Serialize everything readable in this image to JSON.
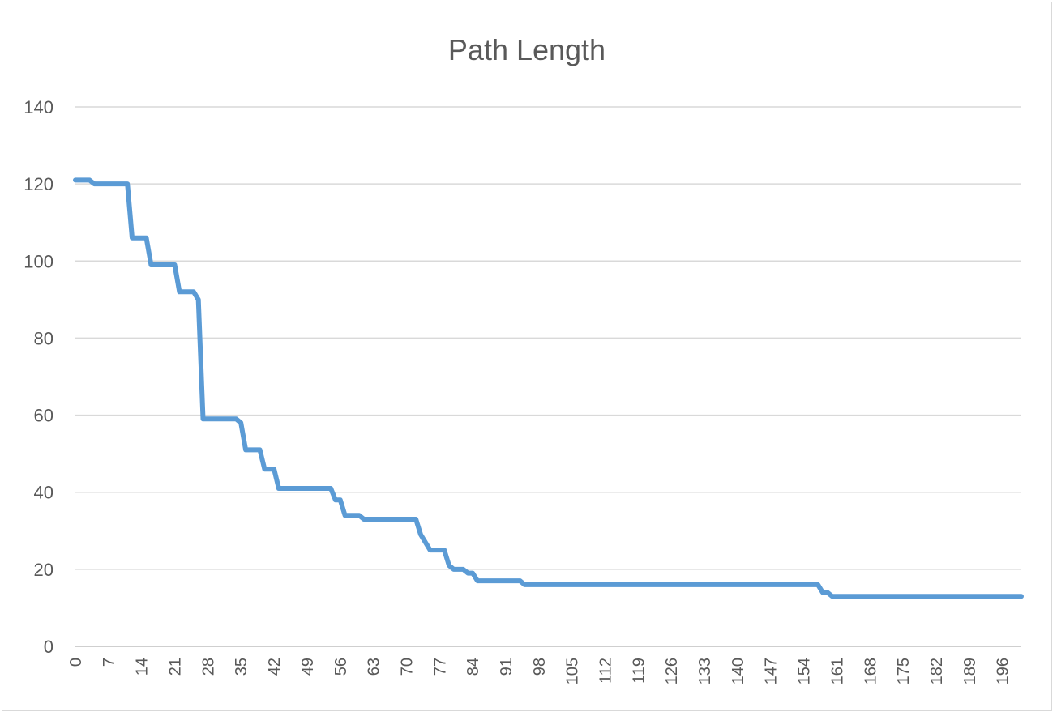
{
  "chart_data": {
    "type": "line",
    "title": "Path Length",
    "xlabel": "",
    "ylabel": "",
    "ylim": [
      0,
      140
    ],
    "xlim": [
      0,
      200
    ],
    "yticks": [
      0,
      20,
      40,
      60,
      80,
      100,
      120,
      140
    ],
    "xtick_labels": [
      "0",
      "7",
      "14",
      "21",
      "28",
      "35",
      "42",
      "49",
      "56",
      "63",
      "70",
      "77",
      "84",
      "91",
      "98",
      "105",
      "112",
      "119",
      "126",
      "133",
      "140",
      "147",
      "154",
      "161",
      "168",
      "175",
      "182",
      "189",
      "196"
    ],
    "grid": "horizontal",
    "legend": "none",
    "series": [
      {
        "color": "#5b9bd5",
        "points": [
          [
            0,
            121
          ],
          [
            3,
            121
          ],
          [
            4,
            120
          ],
          [
            11,
            120
          ],
          [
            12,
            106
          ],
          [
            15,
            106
          ],
          [
            16,
            99
          ],
          [
            21,
            99
          ],
          [
            22,
            92
          ],
          [
            25,
            92
          ],
          [
            26,
            90
          ],
          [
            27,
            59
          ],
          [
            34,
            59
          ],
          [
            35,
            58
          ],
          [
            36,
            51
          ],
          [
            39,
            51
          ],
          [
            40,
            46
          ],
          [
            42,
            46
          ],
          [
            43,
            41
          ],
          [
            54,
            41
          ],
          [
            55,
            38
          ],
          [
            56,
            38
          ],
          [
            57,
            34
          ],
          [
            60,
            34
          ],
          [
            61,
            33
          ],
          [
            72,
            33
          ],
          [
            73,
            29
          ],
          [
            75,
            25
          ],
          [
            78,
            25
          ],
          [
            79,
            21
          ],
          [
            80,
            20
          ],
          [
            82,
            20
          ],
          [
            83,
            19
          ],
          [
            84,
            19
          ],
          [
            85,
            17
          ],
          [
            94,
            17
          ],
          [
            95,
            16
          ],
          [
            157,
            16
          ],
          [
            158,
            14
          ],
          [
            159,
            14
          ],
          [
            160,
            13
          ],
          [
            200,
            13
          ]
        ]
      }
    ]
  }
}
